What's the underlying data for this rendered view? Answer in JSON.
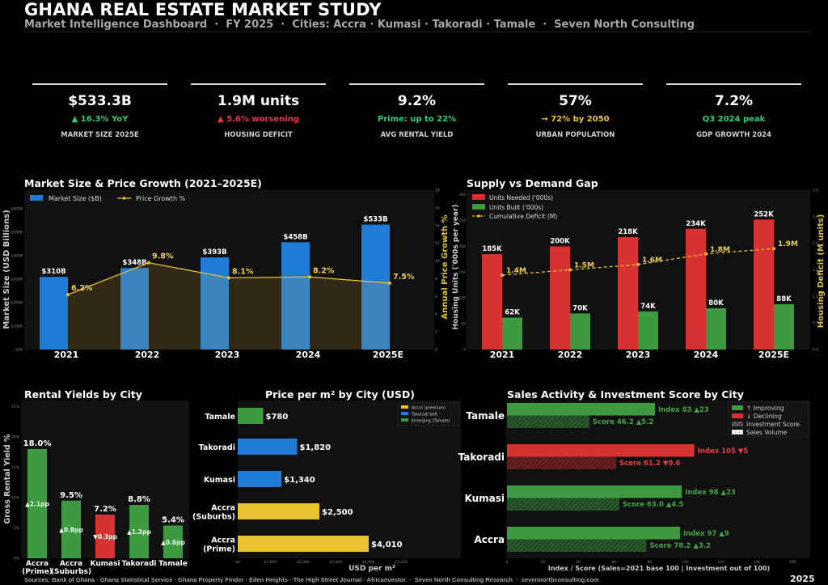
{
  "header": {
    "title": "GHANA REAL ESTATE MARKET STUDY",
    "subtitle": "Market Intelligence Dashboard  ·  FY 2025  ·  Cities: Accra · Kumasi · Takoradi · Tamale  ·  Seven North Consulting"
  },
  "kpis": [
    {
      "value": "$533.3B",
      "change": "▲ 16.3% YoY",
      "label": "MARKET SIZE 2025E",
      "color": "#2ecc71"
    },
    {
      "value": "1.9M units",
      "change": "▲ 5.6% worsening",
      "label": "HOUSING DEFICIT",
      "color": "#e8334a"
    },
    {
      "value": "9.2%",
      "change": "Prime: up to 22%",
      "label": "AVG RENTAL YIELD",
      "color": "#2ecc71"
    },
    {
      "value": "57%",
      "change": "→ 72% by 2050",
      "label": "URBAN POPULATION",
      "color": "#f1c232"
    },
    {
      "value": "7.2%",
      "change": "Q3 2024 peak",
      "label": "GDP GROWTH 2024",
      "color": "#2ecc71"
    }
  ],
  "colors": {
    "blue": "#1f7bd6",
    "green": "#3d9a40",
    "red": "#d63232",
    "yellow": "#e8c230",
    "panel": "#111111"
  },
  "chart_data": [
    {
      "type": "bar+line",
      "title": "Market Size & Price Growth (2021–2025E)",
      "categories": [
        "2021",
        "2022",
        "2023",
        "2024",
        "2025E"
      ],
      "series": [
        {
          "name": "Market Size ($B)",
          "axis": "left",
          "values": [
            310,
            348,
            393,
            458,
            533
          ],
          "labels": [
            "$310B",
            "$348B",
            "$393B",
            "$458B",
            "$533B"
          ]
        },
        {
          "name": "Price Growth %",
          "axis": "right",
          "values": [
            6.2,
            9.8,
            8.1,
            8.2,
            7.5
          ],
          "labels": [
            "6.2%",
            "9.8%",
            "8.1%",
            "8.2%",
            "7.5%"
          ]
        }
      ],
      "ylabel": "Market Size (USD Billions)",
      "y2label": "Annual Price Growth %",
      "ylim": [
        0,
        680
      ],
      "yticks": [
        0,
        100,
        200,
        300,
        400,
        500,
        600
      ],
      "yticklabels": [
        "$0B",
        "$100B",
        "$200B",
        "$300B",
        "$400B",
        "$500B",
        "$600B"
      ],
      "y2lim": [
        0,
        18
      ],
      "y2ticks": [
        "0",
        "2",
        "4",
        "6",
        "8",
        "10",
        "12",
        "14",
        "16",
        "18"
      ],
      "legend": "top-left",
      "grid": false
    },
    {
      "type": "bar+line",
      "title": "Supply vs Demand Gap",
      "categories": [
        "2021",
        "2022",
        "2023",
        "2024",
        "2025E"
      ],
      "series": [
        {
          "name": "Units Needed ('000s)",
          "axis": "left",
          "values": [
            185,
            200,
            218,
            234,
            252
          ],
          "labels": [
            "185K",
            "200K",
            "218K",
            "234K",
            "252K"
          ]
        },
        {
          "name": "Units Built ('000s)",
          "axis": "left",
          "values": [
            62,
            70,
            74,
            80,
            88
          ],
          "labels": [
            "62K",
            "70K",
            "74K",
            "80K",
            "88K"
          ]
        },
        {
          "name": "Cumulative Deficit (M)",
          "axis": "right",
          "values": [
            1.4,
            1.5,
            1.6,
            1.8,
            1.9
          ],
          "labels": [
            "1.4M",
            "1.5M",
            "1.6M",
            "1.8M",
            "1.9M"
          ]
        }
      ],
      "ylabel": "Housing Units ('000s per year)",
      "y2label": "Housing Deficit (M units)",
      "ylim": [
        0,
        309
      ],
      "yticks": [
        "0",
        "50",
        "100",
        "150",
        "200",
        "250",
        "300"
      ],
      "y2lim": [
        0,
        3.0
      ],
      "y2ticks": [
        "0.0",
        "0.5",
        "1.0",
        "1.5",
        "2.0",
        "2.5",
        "3.0"
      ],
      "legend": "top-left",
      "grid": false
    },
    {
      "type": "bar",
      "title": "Rental Yields by City",
      "categories": [
        "Accra\n(Prime)",
        "Accra\n(Suburbs)",
        "Kumasi",
        "Takoradi",
        "Tamale"
      ],
      "values": [
        18.0,
        9.5,
        7.2,
        8.8,
        5.4
      ],
      "labels": [
        "18.0%",
        "9.5%",
        "7.2%",
        "8.8%",
        "5.4%"
      ],
      "deltas": [
        "▲2.1pp",
        "▲0.8pp",
        "▼0.3pp",
        "▲1.2pp",
        "▲0.6pp"
      ],
      "direction": [
        "up",
        "up",
        "down",
        "up",
        "up"
      ],
      "ylabel": "Gross Rental Yield %",
      "ylim": [
        0,
        26
      ],
      "yticks": [
        "0%",
        "5%",
        "10%",
        "15%",
        "20%",
        "25%"
      ]
    },
    {
      "type": "barh",
      "title": "Price per m²  by City (USD)",
      "categories": [
        "Accra\n(Prime)",
        "Accra\n(Suburbs)",
        "Kumasi",
        "Takoradi",
        "Tamale"
      ],
      "values": [
        4010,
        2500,
        1340,
        1820,
        780
      ],
      "labels": [
        "$4,010",
        "$2,500",
        "$1,340",
        "$1,820",
        "$780"
      ],
      "groups": [
        "premium",
        "premium",
        "belt",
        "belt",
        "emerging"
      ],
      "legend": [
        {
          "name": "Accra (premium)",
          "group": "premium",
          "color": "#e8c230"
        },
        {
          "name": "Takoradi belt",
          "group": "belt",
          "color": "#1f7bd6"
        },
        {
          "name": "Emerging (Tamale)",
          "group": "emerging",
          "color": "#3d9a40"
        }
      ],
      "xlabel": "USD per m²",
      "xlim": [
        0,
        6500
      ],
      "xticks": [
        "$0",
        "$1,000",
        "$2,000",
        "$3,000",
        "$4,000",
        "$5,000"
      ]
    },
    {
      "type": "barh-grouped",
      "title": "Sales Activity & Investment Score by City",
      "categories": [
        "Accra",
        "Kumasi",
        "Takoradi",
        "Tamale"
      ],
      "series": [
        {
          "name": "Sales Volume",
          "values": [
            97,
            98,
            105,
            83
          ],
          "labels": [
            "Index 97  ▲9",
            "Index 98  ▲23",
            "Index 105  ▼5",
            "Index 83  ▲23"
          ]
        },
        {
          "name": "Investment Score",
          "values": [
            78.2,
            63.0,
            61.2,
            46.2
          ],
          "labels": [
            "Score 78.2  ▲3.2",
            "Score 63.0  ▲4.5",
            "Score 61.2  ▼0.6",
            "Score 46.2  ▲5.2"
          ]
        }
      ],
      "status": [
        "up",
        "up",
        "down",
        "up"
      ],
      "legend": [
        {
          "name": "↑ Improving",
          "color": "#3d9a40"
        },
        {
          "name": "↓ Declining",
          "color": "#d63232"
        },
        {
          "name": "Investment Score",
          "swatch": "hatch"
        },
        {
          "name": "Sales Volume",
          "swatch": "#e6e6e6"
        }
      ],
      "legend_position": "bottom-right",
      "xlabel": "Index / Score (Sales=2021 base 100 | Investment out of 100)",
      "xlim": [
        0,
        170
      ],
      "xticks": [
        "0",
        "20",
        "40",
        "60",
        "80",
        "100",
        "120",
        "140",
        "160"
      ]
    }
  ],
  "footer": {
    "sources": "Sources: Bank of Ghana · Ghana Statistical Service · Ghana Property Finder · Eden Heights · The High Street Journal · Africanvestor  ·  Seven North Consulting Research  ·  sevennorthconsulting.com",
    "year": "2025"
  }
}
